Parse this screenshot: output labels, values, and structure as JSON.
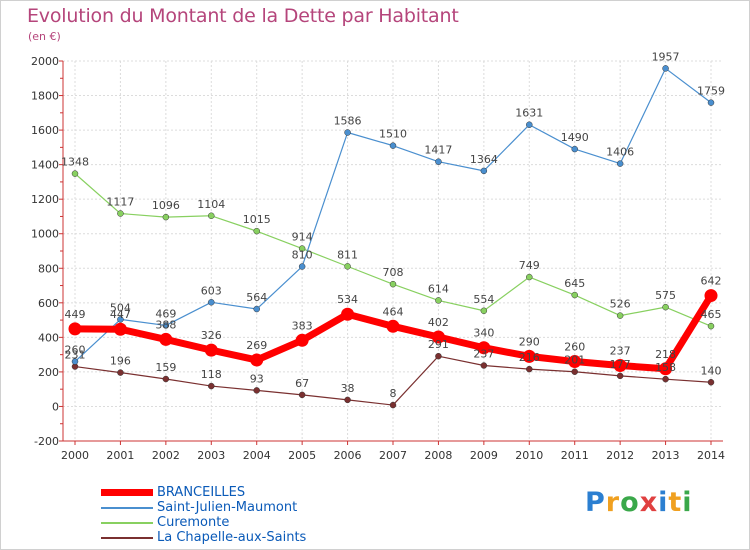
{
  "header": {
    "title": "Evolution du Montant de la Dette par Habitant",
    "unit": "(en €)"
  },
  "logo": {
    "text": "Proxiti",
    "letters": [
      {
        "ch": "P",
        "color": "#2b7fd1"
      },
      {
        "ch": "r",
        "color": "#f0a020"
      },
      {
        "ch": "o",
        "color": "#3aa84a"
      },
      {
        "ch": "x",
        "color": "#e04040"
      },
      {
        "ch": "i",
        "color": "#2b7fd1"
      },
      {
        "ch": "t",
        "color": "#f0a020"
      },
      {
        "ch": "i",
        "color": "#3aa84a"
      }
    ]
  },
  "chart_data": {
    "type": "line",
    "title": "Evolution du Montant de la Dette par Habitant",
    "ylabel": "(en €)",
    "xlabel": "",
    "ylim": [
      -200,
      2000
    ],
    "yticks": [
      -200,
      0,
      200,
      400,
      600,
      800,
      1000,
      1200,
      1400,
      1600,
      1800,
      2000
    ],
    "grid": true,
    "legend_position": "bottom-left",
    "x": [
      "2000",
      "2001",
      "2002",
      "2003",
      "2004",
      "2005",
      "2006",
      "2007",
      "2008",
      "2009",
      "2010",
      "2011",
      "2012",
      "2013",
      "2014"
    ],
    "series": [
      {
        "name": "BRANCEILLES",
        "color": "#ff0000",
        "values": [
          449,
          447,
          388,
          326,
          269,
          383,
          534,
          464,
          402,
          340,
          290,
          260,
          237,
          218,
          642
        ]
      },
      {
        "name": "Saint-Julien-Maumont",
        "color": "#4a8fcf",
        "values": [
          260,
          504,
          469,
          603,
          564,
          810,
          1586,
          1510,
          1417,
          1364,
          1631,
          1490,
          1406,
          1957,
          1759
        ]
      },
      {
        "name": "Curemonte",
        "color": "#88d060",
        "values": [
          1348,
          1117,
          1096,
          1104,
          1015,
          914,
          811,
          708,
          614,
          554,
          749,
          645,
          526,
          575,
          465
        ]
      },
      {
        "name": "La Chapelle-aux-Saints",
        "color": "#7a3030",
        "values": [
          231,
          196,
          159,
          118,
          93,
          67,
          38,
          8,
          291,
          237,
          216,
          201,
          177,
          158,
          140
        ]
      }
    ]
  }
}
